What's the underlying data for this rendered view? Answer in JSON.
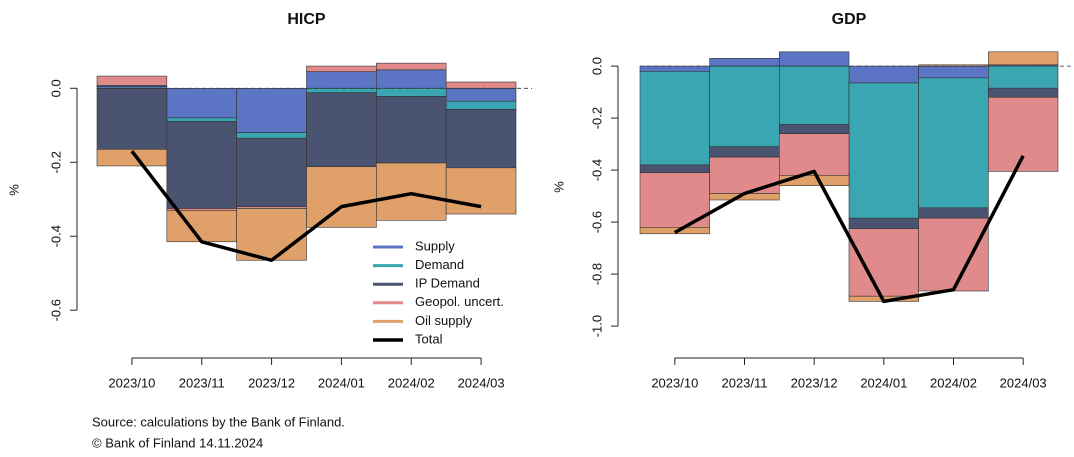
{
  "chart_data": [
    {
      "type": "bar",
      "title": "HICP",
      "ylabel": "%",
      "categories": [
        "2023/10",
        "2023/11",
        "2023/12",
        "2024/01",
        "2024/02",
        "2024/03"
      ],
      "ylim": [
        -0.64,
        0.09
      ],
      "yticks": [
        {
          "value": 0,
          "label": "0.0"
        },
        -0.2,
        -0.4,
        -0.6
      ],
      "legend": "bottom-right",
      "series": [
        {
          "name": "Supply",
          "color": "#5b74c4",
          "values": [
            0.005,
            -0.08,
            -0.12,
            0.045,
            0.05,
            -0.035
          ]
        },
        {
          "name": "Demand",
          "color": "#3aa6b2",
          "values": [
            0.003,
            -0.01,
            -0.015,
            -0.012,
            -0.022,
            -0.022
          ]
        },
        {
          "name": "IP Demand",
          "color": "#4a5470",
          "values": [
            -0.165,
            -0.235,
            -0.185,
            -0.2,
            -0.18,
            -0.158
          ]
        },
        {
          "name": "Geopol. uncert.",
          "color": "#e08a8c",
          "values": [
            0.025,
            -0.005,
            -0.005,
            0.015,
            0.018,
            0.017
          ]
        },
        {
          "name": "Oil supply",
          "color": "#e0a06a",
          "values": [
            -0.045,
            -0.085,
            -0.14,
            -0.164,
            -0.155,
            -0.125
          ]
        },
        {
          "name": "Total",
          "color": "#000000",
          "type": "line",
          "values": [
            -0.17,
            -0.415,
            -0.465,
            -0.32,
            -0.285,
            -0.32
          ]
        }
      ]
    },
    {
      "type": "bar",
      "title": "GDP",
      "ylabel": "%",
      "categories": [
        "2023/10",
        "2023/11",
        "2023/12",
        "2024/01",
        "2024/02",
        "2024/03"
      ],
      "ylim": [
        -1.015,
        0.085
      ],
      "yticks": [
        {
          "value": 0,
          "label": "0.0"
        },
        -0.2,
        -0.4,
        -0.6,
        -0.8,
        {
          "value": -1,
          "label": "-1.0"
        }
      ],
      "series": [
        {
          "color": "#5b74c4",
          "values": [
            -0.02,
            0.03,
            0.055,
            -0.065,
            -0.045,
            0.005
          ]
        },
        {
          "color": "#3aa6b2",
          "values": [
            -0.36,
            -0.31,
            -0.225,
            -0.52,
            -0.5,
            -0.085
          ]
        },
        {
          "color": "#4a5470",
          "values": [
            -0.03,
            -0.04,
            -0.035,
            -0.04,
            -0.04,
            -0.035
          ]
        },
        {
          "color": "#e08a8c",
          "values": [
            -0.21,
            -0.14,
            -0.16,
            -0.26,
            -0.28,
            -0.285
          ]
        },
        {
          "color": "#e0a06a",
          "values": [
            -0.025,
            -0.025,
            -0.04,
            -0.02,
            0.005,
            0.05
          ]
        },
        {
          "color": "#000000",
          "type": "line",
          "values": [
            -0.64,
            -0.49,
            -0.405,
            -0.905,
            -0.86,
            -0.345
          ]
        }
      ]
    }
  ],
  "footer": [
    "Source: calculations by the Bank of Finland.",
    "© Bank of Finland 14.11.2024"
  ]
}
